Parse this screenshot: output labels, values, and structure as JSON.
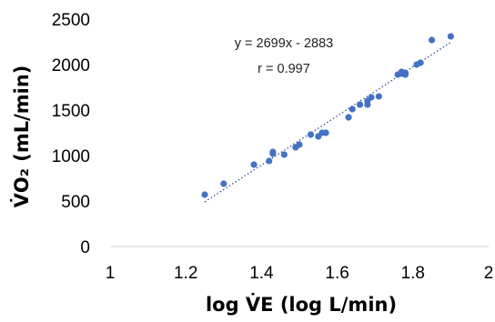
{
  "chart_data": {
    "type": "scatter",
    "xlabel": "log V̇E (log L/min)",
    "ylabel": "V̇O₂ (mL/min)",
    "xlim": [
      1,
      2
    ],
    "ylim": [
      0,
      2500
    ],
    "x_ticks": [
      "1",
      "1.2",
      "1.4",
      "1.6",
      "1.8",
      "2"
    ],
    "y_ticks": [
      "0",
      "500",
      "1000",
      "1500",
      "2000",
      "2500"
    ],
    "x_tick_values": [
      1,
      1.2,
      1.4,
      1.6,
      1.8,
      2
    ],
    "y_tick_values": [
      0,
      500,
      1000,
      1500,
      2000,
      2500
    ],
    "grid": false,
    "marker_color": "#4472C4",
    "trendline": {
      "slope": 2699,
      "intercept": -2883,
      "style": "dotted",
      "color": "#2F4F8F",
      "x_range": [
        1.25,
        1.9
      ]
    },
    "annotations": [
      "y = 2699x - 2883",
      "r = 0.997"
    ],
    "points": [
      {
        "x": 1.25,
        "y": 570
      },
      {
        "x": 1.3,
        "y": 690
      },
      {
        "x": 1.38,
        "y": 900
      },
      {
        "x": 1.42,
        "y": 940
      },
      {
        "x": 1.43,
        "y": 1040
      },
      {
        "x": 1.43,
        "y": 1020
      },
      {
        "x": 1.46,
        "y": 1010
      },
      {
        "x": 1.49,
        "y": 1090
      },
      {
        "x": 1.5,
        "y": 1120
      },
      {
        "x": 1.53,
        "y": 1230
      },
      {
        "x": 1.55,
        "y": 1210
      },
      {
        "x": 1.56,
        "y": 1250
      },
      {
        "x": 1.57,
        "y": 1250
      },
      {
        "x": 1.63,
        "y": 1420
      },
      {
        "x": 1.64,
        "y": 1510
      },
      {
        "x": 1.66,
        "y": 1560
      },
      {
        "x": 1.68,
        "y": 1560
      },
      {
        "x": 1.68,
        "y": 1600
      },
      {
        "x": 1.69,
        "y": 1640
      },
      {
        "x": 1.71,
        "y": 1650
      },
      {
        "x": 1.76,
        "y": 1890
      },
      {
        "x": 1.77,
        "y": 1900
      },
      {
        "x": 1.77,
        "y": 1920
      },
      {
        "x": 1.78,
        "y": 1890
      },
      {
        "x": 1.78,
        "y": 1910
      },
      {
        "x": 1.81,
        "y": 2000
      },
      {
        "x": 1.82,
        "y": 2020
      },
      {
        "x": 1.85,
        "y": 2270
      },
      {
        "x": 1.9,
        "y": 2310
      }
    ]
  }
}
